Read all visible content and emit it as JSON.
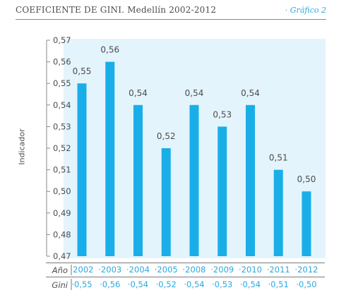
{
  "header": {
    "title": "COEFICIENTE DE GINI. Medellín 2002-2012",
    "figure_label": "· Gráfico 2"
  },
  "chart_data": {
    "type": "bar",
    "title": "",
    "xlabel": "",
    "ylabel": "Indicador",
    "ylim": [
      0.47,
      0.57
    ],
    "yticks": [
      "0,47",
      "0,48",
      "0,49",
      "0,50",
      "0,51",
      "0,52",
      "0,53",
      "0,54",
      "0,55",
      "0,56",
      "0,57"
    ],
    "categories": [
      "2002",
      "2003",
      "2004",
      "2005",
      "2008",
      "2009",
      "2010",
      "2011",
      "2012"
    ],
    "values": [
      0.55,
      0.56,
      0.54,
      0.52,
      0.54,
      0.53,
      0.54,
      0.51,
      0.5
    ],
    "data_labels": [
      "0,55",
      "0,56",
      "0,54",
      "0,52",
      "0,54",
      "0,53",
      "0,54",
      "0,51",
      "0,50"
    ],
    "bar_color": "#1aaee8",
    "background_color": "#e3f4fc",
    "grid": false
  },
  "table": {
    "row1_label": "Año",
    "row2_label": "Gini",
    "years": [
      "2002",
      "2003",
      "2004",
      "2005",
      "2008",
      "2009",
      "2010",
      "2011",
      "2012"
    ],
    "gini": [
      "0,55",
      "0,56",
      "0,54",
      "0,52",
      "0,54",
      "0,53",
      "0,54",
      "0,51",
      "0,50"
    ]
  }
}
